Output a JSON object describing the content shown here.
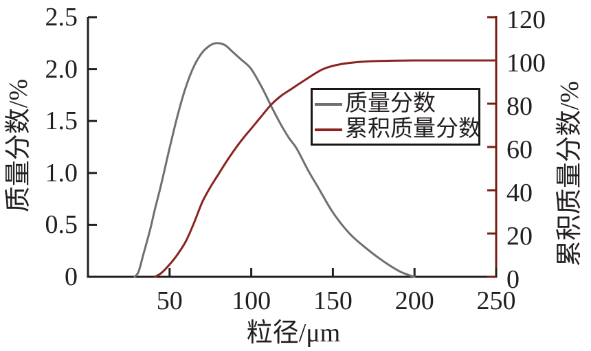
{
  "figure": {
    "background": "#ffffff",
    "text_color": "#231f20"
  },
  "chart_data": {
    "type": "line",
    "title": "",
    "grid": false,
    "legend_position": "center-right-inside",
    "x_axis": {
      "label": "粒径/μm",
      "min": 0,
      "max": 250,
      "ticks": [
        50,
        100,
        150,
        200,
        250
      ],
      "tick_labels": [
        "50",
        "100",
        "150",
        "200",
        "250"
      ],
      "color": "#231f20"
    },
    "y_axis_left": {
      "label": "质量分数/%",
      "min": 0,
      "max": 2.5,
      "ticks": [
        0,
        0.5,
        1.0,
        1.5,
        2.0,
        2.5
      ],
      "tick_labels": [
        "0",
        "0.5",
        "1.0",
        "1.5",
        "2.0",
        "2.5"
      ],
      "color": "#231f20"
    },
    "y_axis_right": {
      "label": "累积质量分数/%",
      "min": 0,
      "max": 120,
      "ticks": [
        0,
        20,
        40,
        60,
        80,
        100,
        120
      ],
      "tick_labels": [
        "0",
        "20",
        "40",
        "60",
        "80",
        "100",
        "120"
      ],
      "color": "#7a1c16"
    },
    "series": [
      {
        "name": "质量分数",
        "axis": "left",
        "color": "#6e6f72",
        "points": [
          [
            28.6,
            0
          ],
          [
            31,
            0.05
          ],
          [
            34,
            0.22
          ],
          [
            38,
            0.45
          ],
          [
            41,
            0.65
          ],
          [
            45,
            0.9
          ],
          [
            50,
            1.24
          ],
          [
            55,
            1.56
          ],
          [
            60,
            1.83
          ],
          [
            65,
            2.03
          ],
          [
            70,
            2.16
          ],
          [
            75,
            2.23
          ],
          [
            79,
            2.25
          ],
          [
            84,
            2.23
          ],
          [
            89,
            2.16
          ],
          [
            94,
            2.09
          ],
          [
            100,
            2.0
          ],
          [
            107,
            1.81
          ],
          [
            112,
            1.65
          ],
          [
            118,
            1.47
          ],
          [
            123,
            1.34
          ],
          [
            128,
            1.23
          ],
          [
            135,
            1.02
          ],
          [
            141,
            0.86
          ],
          [
            150,
            0.62
          ],
          [
            160,
            0.42
          ],
          [
            170,
            0.28
          ],
          [
            180,
            0.16
          ],
          [
            190,
            0.06
          ],
          [
            196,
            0.02
          ],
          [
            200,
            0
          ]
        ]
      },
      {
        "name": "累积质量分数",
        "axis": "right",
        "color": "#8a241e",
        "points": [
          [
            41,
            0
          ],
          [
            45,
            1.8
          ],
          [
            50,
            5.7
          ],
          [
            55,
            10.5
          ],
          [
            60,
            16.5
          ],
          [
            65,
            25
          ],
          [
            70,
            34.5
          ],
          [
            75,
            41.5
          ],
          [
            80,
            47.5
          ],
          [
            85,
            53.5
          ],
          [
            90,
            59
          ],
          [
            95,
            64
          ],
          [
            100,
            68.5
          ],
          [
            106,
            74
          ],
          [
            112,
            79.4
          ],
          [
            118,
            83.5
          ],
          [
            125,
            87
          ],
          [
            133,
            91
          ],
          [
            144,
            96
          ],
          [
            155,
            98.3
          ],
          [
            168,
            99.4
          ],
          [
            182,
            99.8
          ],
          [
            200,
            100
          ],
          [
            225,
            100
          ],
          [
            250,
            100
          ]
        ]
      }
    ]
  }
}
